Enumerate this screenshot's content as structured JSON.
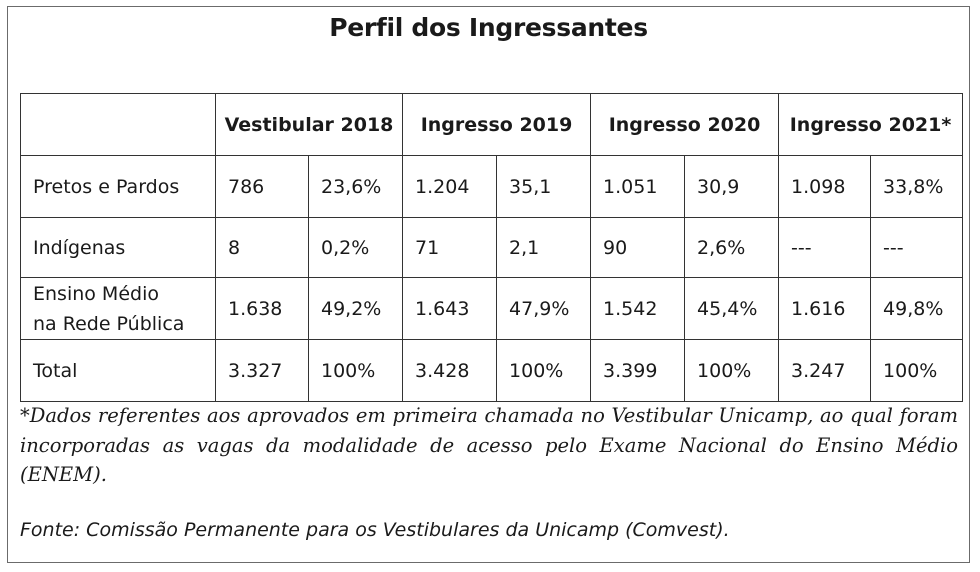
{
  "title": "Perfil dos Ingressantes",
  "table": {
    "headers": [
      "Vestibular 2018",
      "Ingresso 2019",
      "Ingresso 2020",
      "Ingresso 2021*"
    ],
    "rows": [
      {
        "label_line1": "Pretos e Pardos",
        "label_line2": "",
        "cells": [
          "786",
          "23,6%",
          "1.204",
          "35,1",
          "1.051",
          "30,9",
          "1.098",
          "33,8%"
        ]
      },
      {
        "label_line1": "Indígenas",
        "label_line2": "",
        "cells": [
          "8",
          "0,2%",
          "71",
          "2,1",
          "90",
          "2,6%",
          "---",
          "---"
        ]
      },
      {
        "label_line1": "Ensino Médio",
        "label_line2": "na Rede Pública",
        "cells": [
          "1.638",
          "49,2%",
          "1.643",
          "47,9%",
          "1.542",
          "45,4%",
          "1.616",
          "49,8%"
        ]
      },
      {
        "label_line1": "Total",
        "label_line2": "",
        "cells": [
          "3.327",
          "100%",
          "3.428",
          "100%",
          "3.399",
          "100%",
          "3.247",
          "100%"
        ]
      }
    ]
  },
  "footnote": "*Dados referentes aos aprovados em primeira chamada no Vestibular Unicamp, ao qual foram incorporadas as vagas da modalidade de acesso pelo Exame Nacional do Ensino Médio (ENEM).",
  "source": "Fonte: Comissão Permanente para os Vestibulares da Unicamp (Comvest)."
}
